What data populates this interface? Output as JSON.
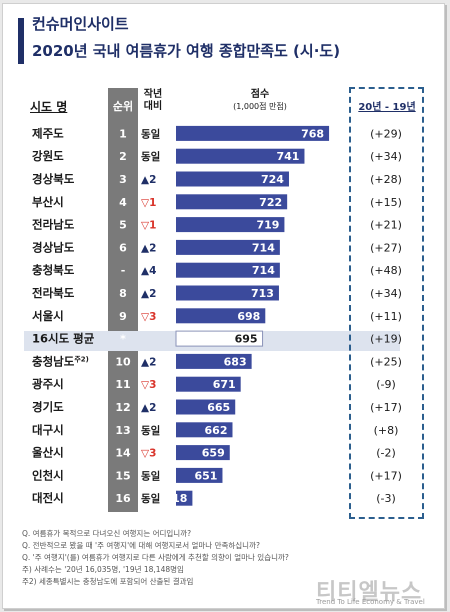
{
  "header": {
    "brand": "컨슈머인사이트",
    "title": "2020년 국내 여름휴가 여행 종합만족도 (시·도)"
  },
  "columns": {
    "region": "시도 명",
    "rank": "순위",
    "prev_line1": "작년",
    "prev_line2": "대비",
    "score_line1": "점수",
    "score_line2": "(1,000점 만점)",
    "diff": "20년 - 19년"
  },
  "colors": {
    "bar": "#3b4a9c",
    "title": "#1f2f67",
    "up": "#1f2f67",
    "down": "#d9342b",
    "rank_bg": "#7a7a7a",
    "highlight": "#dde3ee"
  },
  "chart_data": {
    "type": "bar",
    "orientation": "horizontal",
    "xlim": [
      600,
      780
    ],
    "rows": [
      {
        "region": "제주도",
        "rank": "1",
        "change": "동일",
        "change_dir": "same",
        "score": 768,
        "diff": "(+29)"
      },
      {
        "region": "강원도",
        "rank": "2",
        "change": "동일",
        "change_dir": "same",
        "score": 741,
        "diff": "(+34)"
      },
      {
        "region": "경상북도",
        "rank": "3",
        "change": "▲2",
        "change_dir": "up",
        "score": 724,
        "diff": "(+28)"
      },
      {
        "region": "부산시",
        "rank": "4",
        "change": "▽1",
        "change_dir": "down",
        "score": 722,
        "diff": "(+15)"
      },
      {
        "region": "전라남도",
        "rank": "5",
        "change": "▽1",
        "change_dir": "down",
        "score": 719,
        "diff": "(+21)"
      },
      {
        "region": "경상남도",
        "rank": "6",
        "change": "▲2",
        "change_dir": "up",
        "score": 714,
        "diff": "(+27)"
      },
      {
        "region": "충청북도",
        "rank": "-",
        "change": "▲4",
        "change_dir": "up",
        "score": 714,
        "diff": "(+48)"
      },
      {
        "region": "전라북도",
        "rank": "8",
        "change": "▲2",
        "change_dir": "up",
        "score": 713,
        "diff": "(+34)"
      },
      {
        "region": "서울시",
        "rank": "9",
        "change": "▽3",
        "change_dir": "down",
        "score": 698,
        "diff": "(+11)"
      },
      {
        "region": "16시도 평균",
        "rank": "*",
        "change": "",
        "change_dir": "none",
        "score": 695,
        "diff": "(+19)",
        "is_average": true
      },
      {
        "region": "충청남도",
        "region_sup": "주2)",
        "rank": "10",
        "change": "▲2",
        "change_dir": "up",
        "score": 683,
        "diff": "(+25)"
      },
      {
        "region": "광주시",
        "rank": "11",
        "change": "▽3",
        "change_dir": "down",
        "score": 671,
        "diff": "(-9)"
      },
      {
        "region": "경기도",
        "rank": "12",
        "change": "▲2",
        "change_dir": "up",
        "score": 665,
        "diff": "(+17)"
      },
      {
        "region": "대구시",
        "rank": "13",
        "change": "동일",
        "change_dir": "same",
        "score": 662,
        "diff": "(+8)"
      },
      {
        "region": "울산시",
        "rank": "14",
        "change": "▽3",
        "change_dir": "down",
        "score": 659,
        "diff": "(-2)"
      },
      {
        "region": "인천시",
        "rank": "15",
        "change": "동일",
        "change_dir": "same",
        "score": 651,
        "diff": "(+17)"
      },
      {
        "region": "대전시",
        "rank": "16",
        "change": "동일",
        "change_dir": "same",
        "score": 618,
        "diff": "(-3)"
      }
    ]
  },
  "notes": [
    "Q. 여름휴가 목적으로 다녀오신 여행지는 어디입니까?",
    "Q. 전반적으로 봤을 때 '주 여행지'에 대해 여행지로서 얼마나 만족하십니까?",
    "Q. '주 여행지'(를) 여름휴가 여행지로 다른 사람에게 추천할 의향이 얼마나 있습니까?",
    "주) 사례수는 '20년 16,035명, '19년 18,148명임",
    "주2) 세종특별시는 충청남도에 포함되어 산출된 결과임"
  ],
  "watermark": {
    "name": "티티엘뉴스",
    "tagline": "Trend To Life Economy & Travel"
  }
}
